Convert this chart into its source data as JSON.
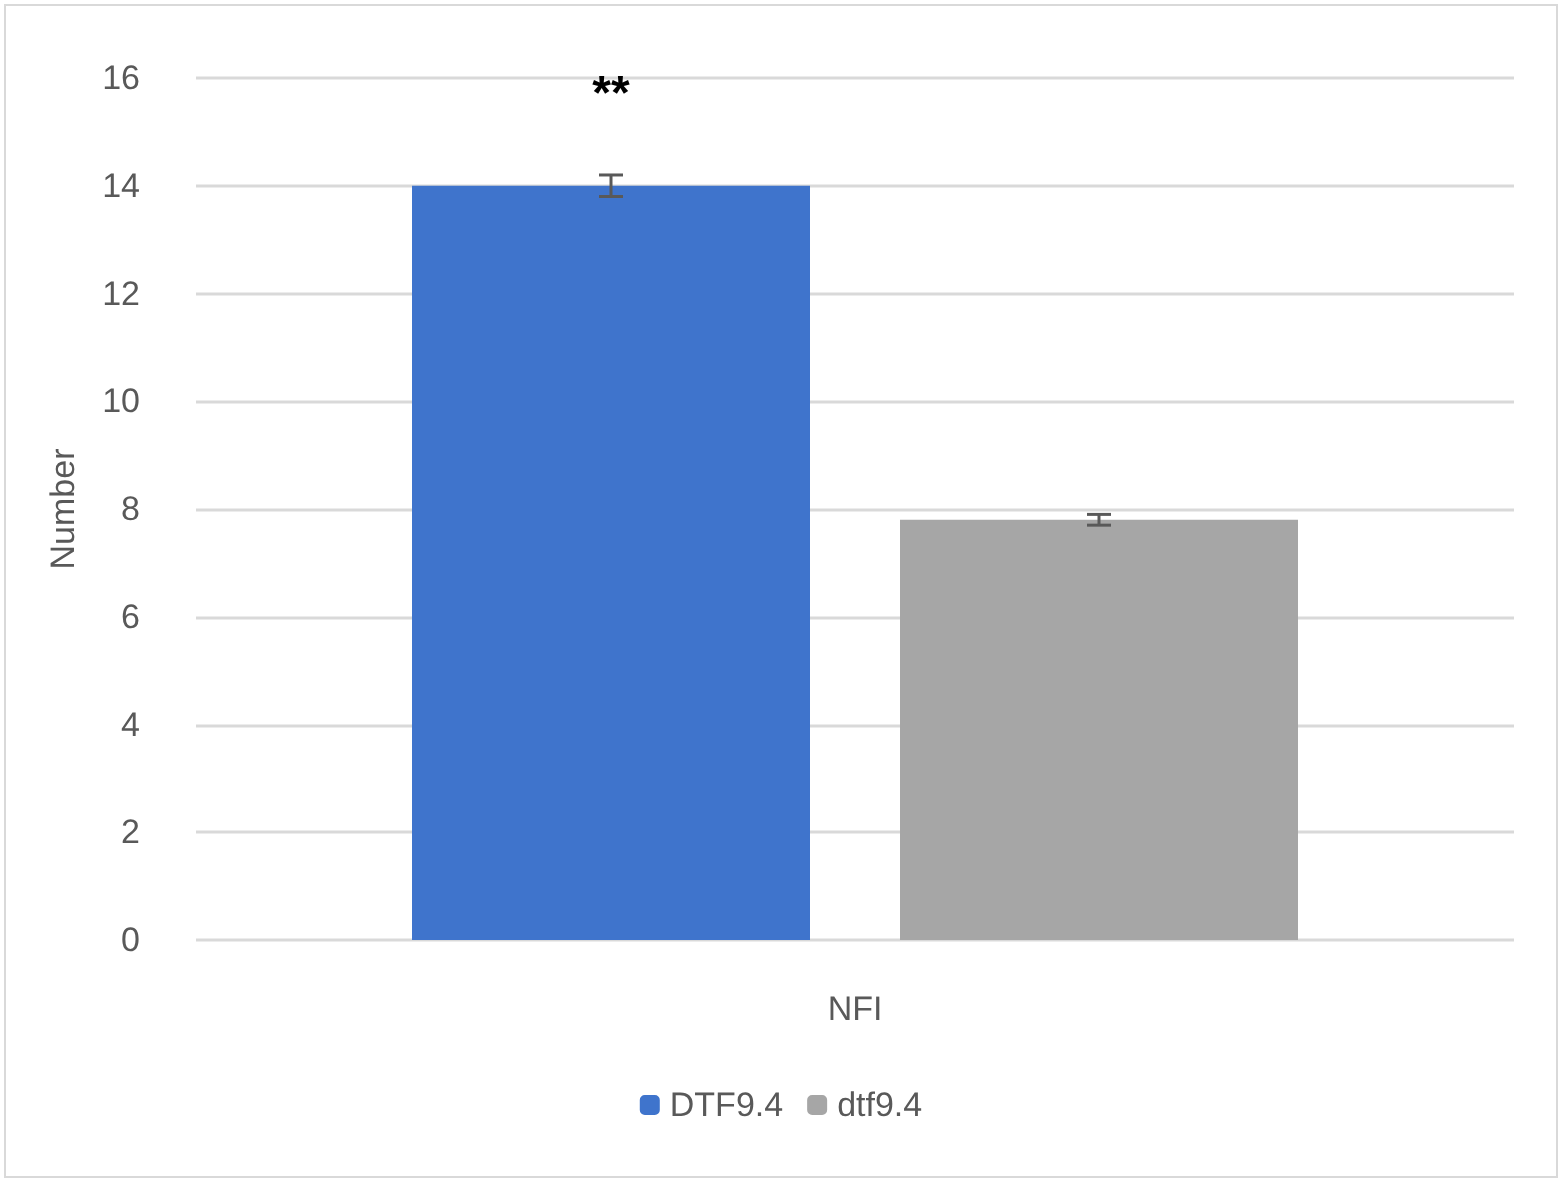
{
  "chart_data": {
    "type": "bar",
    "ylabel": "Number",
    "categories": [
      "NFI"
    ],
    "series": [
      {
        "name": "DTF9.4",
        "color": "#3f74cc",
        "values": [
          14.0
        ],
        "errors": [
          0.2
        ]
      },
      {
        "name": "dtf9.4",
        "color": "#a6a6a6",
        "values": [
          7.8
        ],
        "errors": [
          0.1
        ]
      }
    ],
    "ylim": [
      0,
      16
    ],
    "yticks": [
      0,
      2,
      4,
      6,
      8,
      10,
      12,
      14,
      16
    ],
    "grid": "y",
    "legend": "bottom",
    "annotations": [
      "**"
    ]
  }
}
